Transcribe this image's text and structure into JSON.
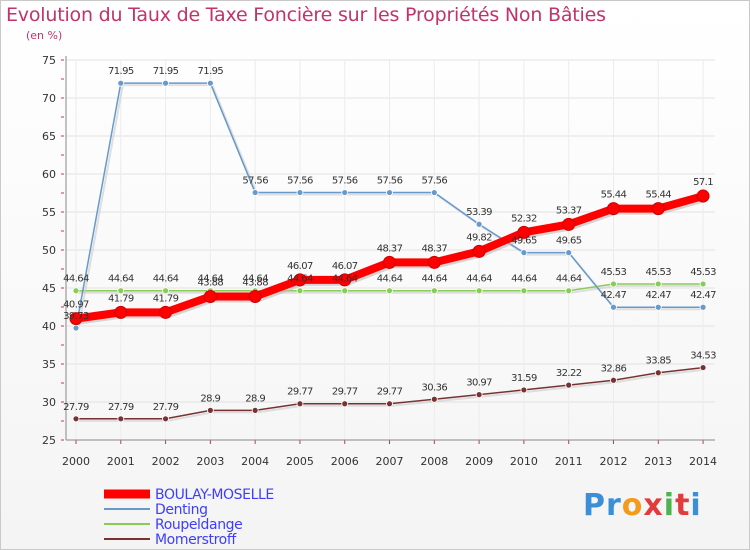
{
  "chart_data": {
    "type": "line",
    "title": "Evolution du Taux de Taxe Foncière sur les Propriétés Non Bâties",
    "subtitle": "(en %)",
    "x": [
      "2000",
      "2001",
      "2002",
      "2003",
      "2004",
      "2005",
      "2006",
      "2007",
      "2008",
      "2009",
      "2010",
      "2011",
      "2012",
      "2013",
      "2014"
    ],
    "ylim": [
      25,
      75
    ],
    "yticks": [
      "25",
      "30",
      "35",
      "40",
      "45",
      "50",
      "55",
      "60",
      "65",
      "70",
      "75"
    ],
    "grid": true,
    "legend_position": "bottom-left",
    "series": [
      {
        "name": "BOULAY-MOSELLE",
        "color": "#ff0000",
        "values": [
          40.97,
          41.79,
          41.79,
          43.88,
          43.88,
          46.07,
          46.07,
          48.37,
          48.37,
          49.82,
          52.32,
          53.37,
          55.44,
          55.44,
          57.1
        ],
        "labels": [
          "40.97",
          "41.79",
          "41.79",
          "43.88",
          "43.88",
          "46.07",
          "46.07",
          "48.37",
          "48.37",
          "49.82",
          "52.32",
          "53.37",
          "55.44",
          "55.44",
          "57.1"
        ]
      },
      {
        "name": "Denting",
        "color": "#6699cc",
        "values": [
          39.73,
          71.95,
          71.95,
          71.95,
          57.56,
          57.56,
          57.56,
          57.56,
          57.56,
          53.39,
          49.65,
          49.65,
          42.47,
          42.47,
          42.47
        ],
        "labels": [
          "39.73",
          "71.95",
          "71.95",
          "71.95",
          "57.56",
          "57.56",
          "57.56",
          "57.56",
          "57.56",
          "53.39",
          "49.65",
          "49.65",
          "42.47",
          "42.47",
          "42.47"
        ]
      },
      {
        "name": "Roupeldange",
        "color": "#88cc55",
        "values": [
          44.64,
          44.64,
          44.64,
          44.64,
          44.64,
          44.64,
          44.64,
          44.64,
          44.64,
          44.64,
          44.64,
          44.64,
          45.53,
          45.53,
          45.53
        ],
        "labels": [
          "44.64",
          "44.64",
          "44.64",
          "44.64",
          "44.64",
          "44.64",
          "44.64",
          "44.64",
          "44.64",
          "44.64",
          "44.64",
          "44.64",
          "45.53",
          "45.53",
          "45.53"
        ]
      },
      {
        "name": "Momerstroff",
        "color": "#773333",
        "values": [
          27.79,
          27.79,
          27.79,
          28.9,
          28.9,
          29.77,
          29.77,
          29.77,
          30.36,
          30.97,
          31.59,
          32.22,
          32.86,
          33.85,
          34.53
        ],
        "labels": [
          "27.79",
          "27.79",
          "27.79",
          "28.9",
          "28.9",
          "29.77",
          "29.77",
          "29.77",
          "30.36",
          "30.97",
          "31.59",
          "32.22",
          "32.86",
          "33.85",
          "34.53"
        ]
      }
    ]
  },
  "brand": {
    "letters": [
      "P",
      "r",
      "o",
      "x",
      "i",
      "t",
      "i"
    ],
    "colors": [
      "#3b8fd6",
      "#3b8fd6",
      "#f29b1d",
      "#e23b3b",
      "#4db34d",
      "#e23b3b",
      "#3b8fd6"
    ]
  }
}
